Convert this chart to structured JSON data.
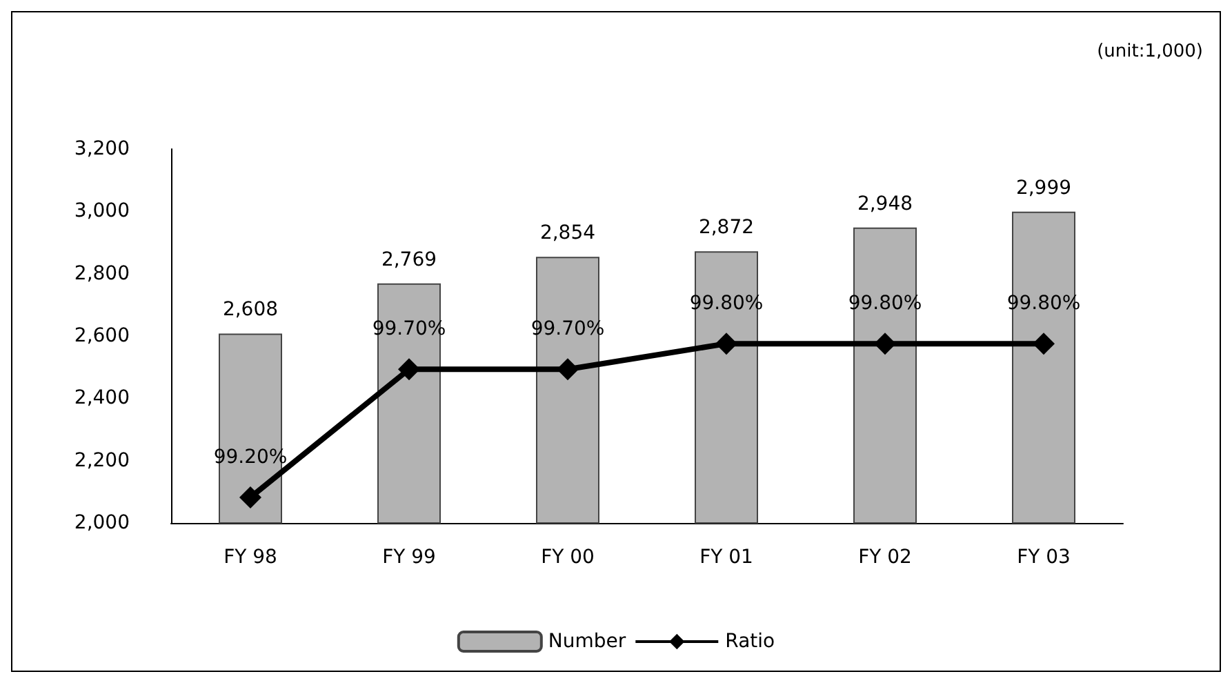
{
  "chart_data": {
    "type": "bar",
    "categories": [
      "FY 98",
      "FY 99",
      "FY 00",
      "FY 01",
      "FY 02",
      "FY 03"
    ],
    "series": [
      {
        "name": "Number",
        "color": "#b3b3b3",
        "values": [
          2608,
          2769,
          2854,
          2872,
          2948,
          2999
        ],
        "value_labels": [
          "2,608",
          "2,769",
          "2,854",
          "2,872",
          "2,948",
          "2,999"
        ]
      },
      {
        "name": "Ratio",
        "type": "line",
        "axis": "y2",
        "color": "#000000",
        "marker": "diamond",
        "values": [
          99.2,
          99.7,
          99.7,
          99.8,
          99.8,
          99.8
        ],
        "value_labels": [
          "99.20%",
          "99.70%",
          "99.70%",
          "99.80%",
          "99.80%",
          "99.80%"
        ]
      }
    ],
    "ylim": [
      2000,
      3200
    ],
    "yticks": [
      {
        "value": 2000,
        "label": "2,000"
      },
      {
        "value": 2200,
        "label": "2,200"
      },
      {
        "value": 2400,
        "label": "2,400"
      },
      {
        "value": 2600,
        "label": "2,600"
      },
      {
        "value": 2800,
        "label": "2,800"
      },
      {
        "value": 3000,
        "label": "3,000"
      },
      {
        "value": 3200,
        "label": "3,200"
      }
    ],
    "y2lim": [
      99.1,
      100.56
    ],
    "annotations": [
      "(unit:1,000)"
    ],
    "legend": "bottom",
    "grid": false
  }
}
